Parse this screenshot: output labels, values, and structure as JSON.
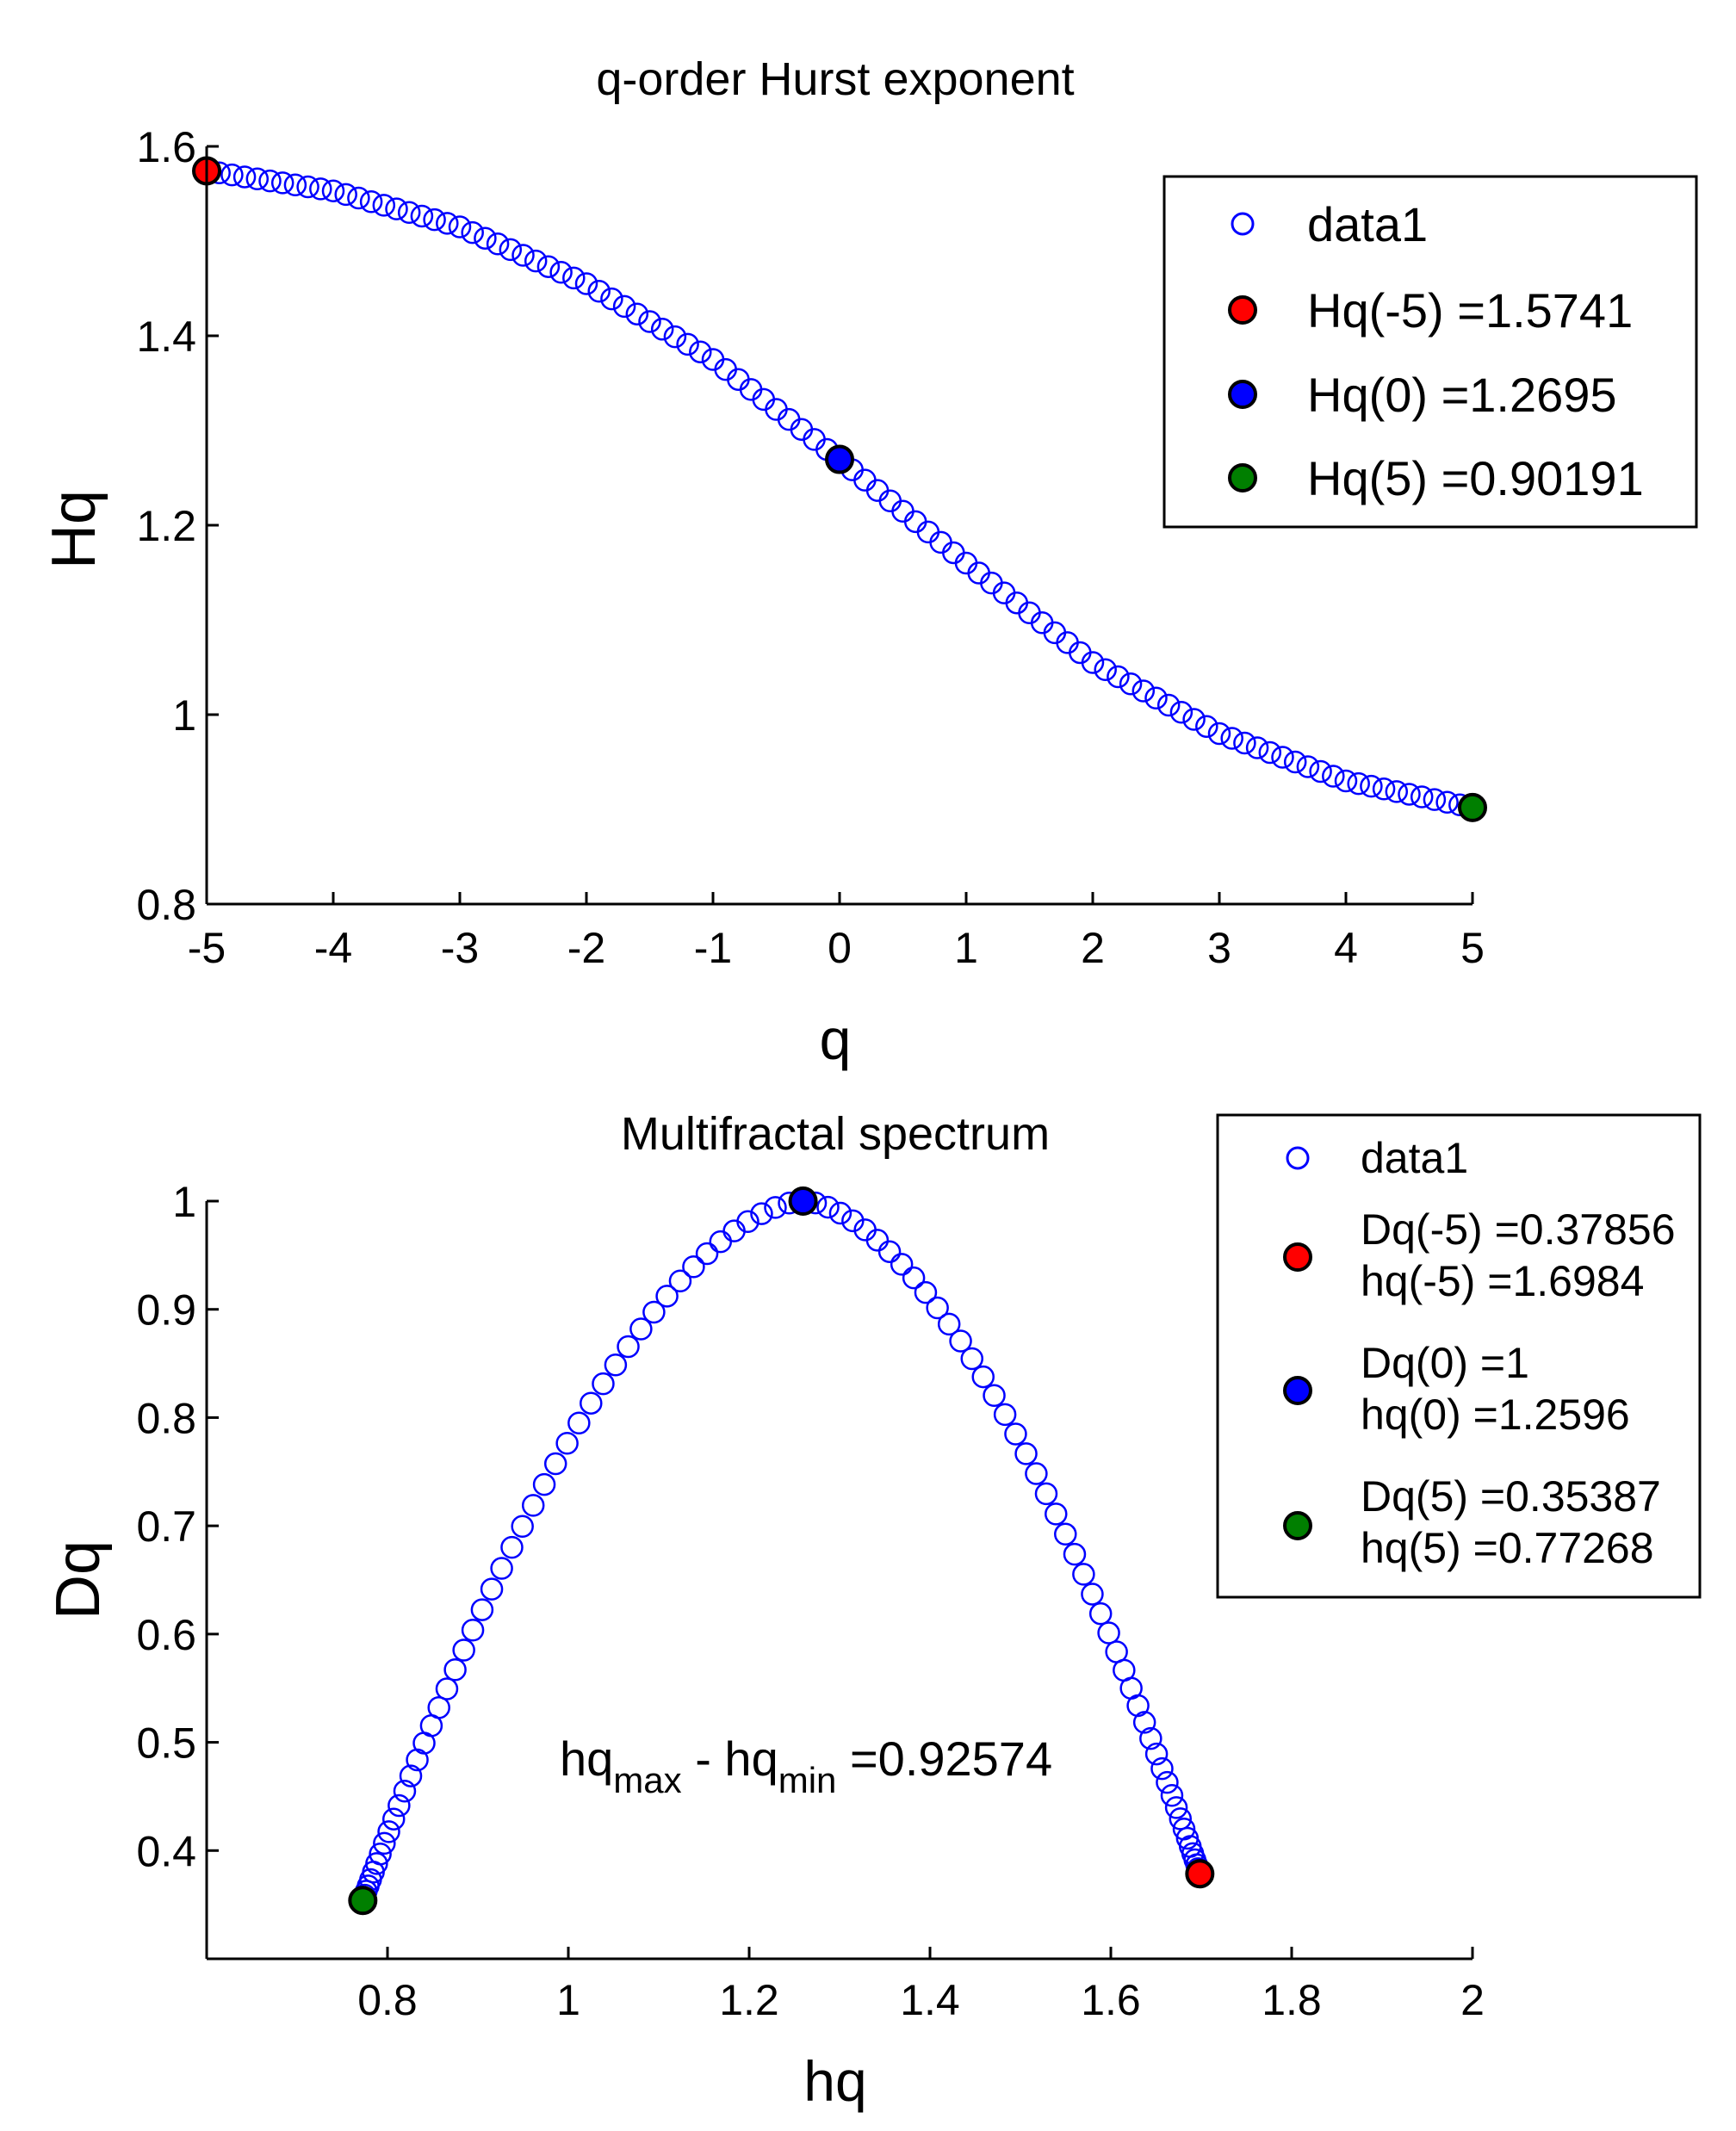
{
  "chart_data": [
    {
      "type": "scatter",
      "title": "q-order Hurst exponent",
      "xlabel": "q",
      "ylabel": "Hq",
      "xlim": [
        -5,
        5
      ],
      "ylim": [
        0.8,
        1.6
      ],
      "xticks": [
        "-5",
        "-4",
        "-3",
        "-2",
        "-1",
        "0",
        "1",
        "2",
        "3",
        "4",
        "5"
      ],
      "yticks": [
        "0.8",
        "1",
        "1.2",
        "1.4",
        "1.6"
      ],
      "series": [
        {
          "name": "data1",
          "marker": "open-circle",
          "color": "#0000ff",
          "q_range": [
            -5,
            5
          ],
          "n_points": 101,
          "Hq_at_q": [
            [
              -5,
              1.5741
            ],
            [
              -4,
              1.553
            ],
            [
              -3,
              1.515
            ],
            [
              -2,
              1.455
            ],
            [
              -1,
              1.375
            ],
            [
              0,
              1.2695
            ],
            [
              1,
              1.16
            ],
            [
              2,
              1.055
            ],
            [
              3,
              0.98
            ],
            [
              4,
              0.93
            ],
            [
              5,
              0.90191
            ]
          ]
        },
        {
          "name": "Hq(-5) =1.5741",
          "marker": "filled-circle",
          "color": "#ff0000",
          "x": -5,
          "y": 1.5741
        },
        {
          "name": "Hq(0) =1.2695",
          "marker": "filled-circle",
          "color": "#0000ff",
          "x": 0,
          "y": 1.2695
        },
        {
          "name": "Hq(5) =0.90191",
          "marker": "filled-circle",
          "color": "#007f00",
          "x": 5,
          "y": 0.90191
        }
      ],
      "legend": {
        "position": "top-right",
        "entries": [
          "data1",
          "Hq(-5) =1.5741",
          "Hq(0) =1.2695",
          "Hq(5) =0.90191"
        ]
      }
    },
    {
      "type": "scatter",
      "title": "Multifractal spectrum",
      "xlabel": "hq",
      "ylabel": "Dq",
      "xlim": [
        0.6,
        2
      ],
      "ylim": [
        0.3,
        1.0
      ],
      "xticks": [
        "0.8",
        "1",
        "1.2",
        "1.4",
        "1.6",
        "1.8",
        "2"
      ],
      "yticks": [
        "0.4",
        "0.5",
        "0.6",
        "0.7",
        "0.8",
        "0.9",
        "1"
      ],
      "series": [
        {
          "name": "data1",
          "marker": "open-circle",
          "color": "#0000ff",
          "shape": "concave arc",
          "hq_min": 0.77268,
          "hq_peak": 1.2596,
          "hq_max": 1.6984,
          "Dq_left_end": 0.35387,
          "Dq_peak": 1,
          "Dq_right_end": 0.37856,
          "n_points": 101
        },
        {
          "name": "Dq(-5) =0.37856",
          "name2": "hq(-5) =1.6984",
          "marker": "filled-circle",
          "color": "#ff0000",
          "x": 1.6984,
          "y": 0.37856
        },
        {
          "name": "Dq(0) =1",
          "name2": "hq(0) =1.2596",
          "marker": "filled-circle",
          "color": "#0000ff",
          "x": 1.2596,
          "y": 1
        },
        {
          "name": "Dq(5) =0.35387",
          "name2": "hq(5) =0.77268",
          "marker": "filled-circle",
          "color": "#007f00",
          "x": 0.77268,
          "y": 0.35387
        }
      ],
      "annotation": {
        "part1": "hq",
        "sub1": "max",
        "part2": " - hq",
        "sub2": "min",
        "part3": " =0.92574"
      },
      "legend": {
        "position": "top-right-outside",
        "entries": [
          [
            "data1"
          ],
          [
            "Dq(-5) =0.37856",
            "hq(-5) =1.6984"
          ],
          [
            "Dq(0) =1",
            "hq(0) =1.2596"
          ],
          [
            "Dq(5) =0.35387",
            "hq(5) =0.77268"
          ]
        ]
      }
    }
  ]
}
